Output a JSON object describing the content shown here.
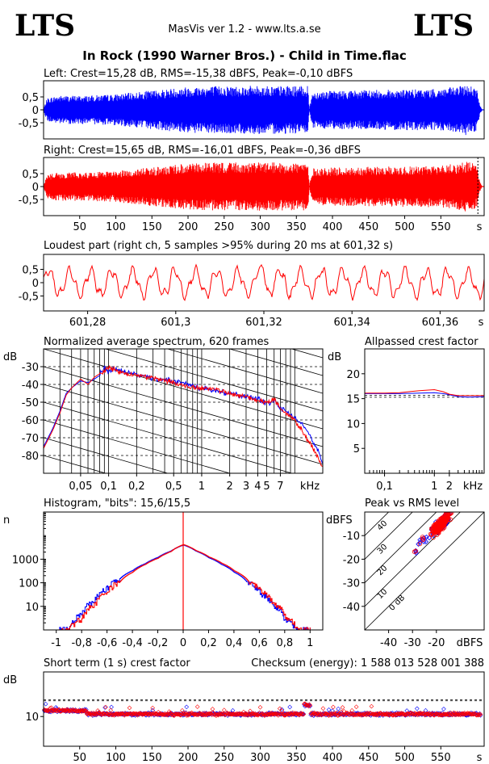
{
  "header": {
    "logo_left": "LTS",
    "logo_right": "LTS",
    "app": "MasVis ver 1.2 - www.lts.a.se",
    "track": "In Rock (1990 Warner Bros.) - Child in Time.flac"
  },
  "colors": {
    "left": "#0000ff",
    "right": "#ff0000",
    "grid": "#000000"
  },
  "chart_data": [
    {
      "id": "wave_left",
      "type": "area",
      "title": "Left: Crest=15,28 dB, RMS=-15,38 dBFS, Peak=-0,10 dBFS",
      "series": [
        {
          "name": "",
          "color": "#0000ff"
        }
      ],
      "ylim": [
        -1,
        1
      ],
      "y_ticks": [
        "0,5",
        "0",
        "-0,5"
      ],
      "xlim": [
        0,
        610
      ],
      "envelope_t": [
        0,
        5,
        20,
        60,
        100,
        150,
        200,
        250,
        300,
        360,
        366,
        368,
        372,
        380,
        420,
        480,
        540,
        575,
        585,
        592,
        600,
        604,
        607
      ],
      "envelope_a": [
        0.05,
        0.45,
        0.55,
        0.55,
        0.6,
        0.75,
        0.9,
        0.93,
        0.93,
        0.92,
        0.92,
        0.05,
        0.7,
        0.72,
        0.75,
        0.78,
        0.8,
        0.9,
        0.98,
        0.95,
        0.8,
        0.2,
        0.02
      ]
    },
    {
      "id": "wave_right",
      "type": "area",
      "title": "Right: Crest=15,65 dB, RMS=-16,01 dBFS, Peak=-0,36 dBFS",
      "series": [
        {
          "name": "",
          "color": "#ff0000"
        }
      ],
      "ylim": [
        -1,
        1
      ],
      "y_ticks": [
        "0,5",
        "0",
        "-0,5"
      ],
      "xlim": [
        0,
        610
      ],
      "x_ticks": [
        50,
        100,
        150,
        200,
        250,
        300,
        350,
        400,
        450,
        500,
        550
      ],
      "x_unit": "s",
      "marker_t": 601.32,
      "envelope_t": [
        0,
        5,
        20,
        60,
        100,
        150,
        200,
        250,
        300,
        360,
        366,
        368,
        372,
        380,
        420,
        480,
        540,
        575,
        585,
        592,
        600,
        604,
        607
      ],
      "envelope_a": [
        0.05,
        0.45,
        0.55,
        0.55,
        0.6,
        0.75,
        0.9,
        0.93,
        0.93,
        0.92,
        0.92,
        0.05,
        0.7,
        0.72,
        0.75,
        0.78,
        0.8,
        0.9,
        0.98,
        0.95,
        0.8,
        0.2,
        0.02
      ]
    },
    {
      "id": "loudest",
      "type": "line",
      "title": "Loudest part (right ch, 5 samples >95% during 20 ms at 601,32 s)",
      "ylim": [
        -1,
        1
      ],
      "y_ticks": [
        "0,5",
        "0",
        "-0,5"
      ],
      "xlim": [
        601.27,
        601.37
      ],
      "x_ticks": [
        601.28,
        601.3,
        601.32,
        601.34,
        601.36
      ],
      "x_tick_labels": [
        "601,28",
        "601,3",
        "601,32",
        "601,34",
        "601,36"
      ],
      "x_unit": "s",
      "series": [
        {
          "name": "",
          "color": "#ff0000"
        }
      ]
    },
    {
      "id": "spectrum",
      "type": "line",
      "title": "Normalized average spectrum, 620 frames",
      "y_unit": "dB",
      "ylim": [
        -90,
        -20
      ],
      "y_ticks": [
        -30,
        -40,
        -50,
        -60,
        -70,
        -80
      ],
      "x_scale": "log",
      "xlim_khz": [
        0.02,
        20
      ],
      "x_ticks_khz": [
        0.05,
        0.1,
        0.2,
        0.5,
        1,
        2,
        3,
        4,
        5,
        7
      ],
      "x_tick_labels": [
        "0,05",
        "0,1",
        "0,2",
        "0,5",
        "1",
        "2",
        "3",
        "4",
        "5",
        "7"
      ],
      "x_unit": "kHz",
      "freq_khz": [
        0.02,
        0.025,
        0.03,
        0.035,
        0.04,
        0.05,
        0.06,
        0.07,
        0.08,
        0.09,
        0.1,
        0.12,
        0.15,
        0.2,
        0.3,
        0.5,
        0.7,
        1,
        1.5,
        2,
        3,
        4,
        5,
        6,
        7,
        8,
        10,
        12,
        15,
        18,
        20
      ],
      "series": [
        {
          "name": "",
          "color": "#0000ff",
          "values": [
            -75,
            -65,
            -55,
            -45,
            -42,
            -38,
            -39,
            -37,
            -35,
            -30,
            -33,
            -31,
            -33,
            -34,
            -37,
            -38,
            -40,
            -42,
            -44,
            -45,
            -47,
            -48,
            -51,
            -49,
            -53,
            -55,
            -59,
            -62,
            -70,
            -78,
            -84
          ]
        },
        {
          "name": "",
          "color": "#ff0000",
          "values": [
            -76,
            -66,
            -56,
            -46,
            -42,
            -37,
            -40,
            -36,
            -34,
            -33,
            -30,
            -32,
            -34,
            -35,
            -36,
            -39,
            -41,
            -42,
            -43,
            -45,
            -47,
            -49,
            -50,
            -48,
            -54,
            -56,
            -60,
            -66,
            -74,
            -82,
            -86
          ]
        }
      ]
    },
    {
      "id": "allpass",
      "type": "line",
      "title": "Allpassed crest factor",
      "y_unit": "dB",
      "ylim": [
        0,
        25
      ],
      "y_ticks": [
        20,
        15,
        10,
        5
      ],
      "x_scale": "log",
      "xlim_khz": [
        0.04,
        10
      ],
      "x_ticks_khz": [
        0.1,
        1,
        2
      ],
      "x_tick_labels": [
        "0,1",
        "1",
        "2"
      ],
      "x_unit": "kHz",
      "ref_line_db": [
        15.28,
        15.65
      ],
      "freq_khz": [
        0.04,
        0.1,
        0.2,
        0.5,
        1,
        1.5,
        2,
        3,
        5,
        10
      ],
      "series": [
        {
          "name": "",
          "color": "#0000ff",
          "values": [
            16,
            16,
            16,
            16.1,
            16.2,
            16,
            15.8,
            15.4,
            15.3,
            15.4
          ]
        },
        {
          "name": "",
          "color": "#ff0000",
          "values": [
            16.1,
            16.1,
            16.2,
            16.6,
            16.8,
            16.4,
            15.9,
            15.6,
            15.6,
            15.6
          ]
        }
      ]
    },
    {
      "id": "histogram",
      "type": "line",
      "title": "Histogram, \"bits\": 15,6/15,5",
      "y_unit": "n",
      "y_scale": "log",
      "ylim": [
        1,
        100000
      ],
      "y_ticks": [
        1000,
        100,
        10
      ],
      "y_tick_labels": [
        "1000",
        "100",
        "10"
      ],
      "xlim": [
        -1.1,
        1.1
      ],
      "x_ticks": [
        -1,
        -0.8,
        -0.6,
        -0.4,
        -0.2,
        0,
        0.2,
        0.4,
        0.6,
        0.8,
        1
      ],
      "x_tick_labels": [
        "-1",
        "-0,8",
        "-0,6",
        "-0,4",
        "-0,2",
        "0",
        "0,2",
        "0,4",
        "0,6",
        "0,8",
        "1"
      ],
      "x": [
        -1.0,
        -0.9,
        -0.8,
        -0.7,
        -0.6,
        -0.5,
        -0.4,
        -0.3,
        -0.2,
        -0.1,
        0,
        0.1,
        0.2,
        0.3,
        0.4,
        0.5,
        0.6,
        0.7,
        0.8,
        0.9,
        1.0
      ],
      "series": [
        {
          "name": "",
          "color": "#0000ff",
          "values": [
            1,
            1,
            5,
            18,
            60,
            150,
            330,
            650,
            1200,
            2200,
            4000,
            2200,
            1150,
            600,
            280,
            110,
            40,
            12,
            3,
            1,
            1
          ]
        },
        {
          "name": "",
          "color": "#ff0000",
          "values": [
            1,
            1,
            3,
            12,
            40,
            110,
            280,
            600,
            1100,
            2100,
            4200,
            2300,
            1250,
            680,
            320,
            140,
            50,
            16,
            4,
            1,
            1
          ]
        }
      ]
    },
    {
      "id": "peak_rms",
      "type": "scatter",
      "title": "Peak vs RMS level",
      "y_unit": "dBFS",
      "x_unit": "dBFS",
      "xlim": [
        -50,
        0
      ],
      "ylim": [
        -50,
        0
      ],
      "x_ticks": [
        -40,
        -30,
        -20
      ],
      "y_ticks": [
        -10,
        -20,
        -30,
        -40
      ],
      "crest_labels": [
        "40",
        "30",
        "20",
        "10",
        "0 dB"
      ],
      "series": [
        {
          "name": "",
          "color": "#0000ff",
          "marker": "diamond"
        },
        {
          "name": "",
          "color": "#ff0000",
          "marker": "circle"
        }
      ]
    },
    {
      "id": "short_crest",
      "type": "scatter",
      "title": "Short term (1 s) crest factor",
      "checksum": "Checksum (energy):  1 588 013 528 001 388",
      "y_unit": "dB",
      "y_ticks": [
        10
      ],
      "ylim": [
        0,
        25
      ],
      "ref_lines_db": [
        15.28,
        15.65
      ],
      "xlim": [
        0,
        610
      ],
      "x_ticks": [
        50,
        100,
        150,
        200,
        250,
        300,
        350,
        400,
        450,
        500,
        550
      ],
      "x_unit": "s",
      "series": [
        {
          "name": "",
          "color": "#0000ff",
          "marker": "diamond"
        },
        {
          "name": "",
          "color": "#ff0000",
          "marker": "diamond"
        }
      ]
    }
  ]
}
